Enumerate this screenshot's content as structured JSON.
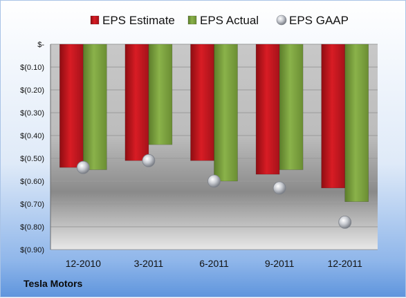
{
  "footer": {
    "company": "Tesla Motors"
  },
  "chart_data": {
    "type": "bar",
    "title": "",
    "xlabel": "",
    "ylabel": "",
    "categories": [
      "12-2010",
      "3-2011",
      "6-2011",
      "9-2011",
      "12-2011"
    ],
    "series": [
      {
        "name": "EPS Estimate",
        "kind": "bar",
        "color": "#c8161e",
        "values": [
          -0.54,
          -0.51,
          -0.51,
          -0.57,
          -0.63
        ]
      },
      {
        "name": "EPS Actual",
        "kind": "bar",
        "color": "#7aa03c",
        "values": [
          -0.55,
          -0.44,
          -0.6,
          -0.55,
          -0.69
        ]
      },
      {
        "name": "EPS GAAP",
        "kind": "marker",
        "color": "#b8bcc4",
        "values": [
          -0.54,
          -0.51,
          -0.6,
          -0.63,
          -0.78
        ]
      }
    ],
    "ylim": [
      -0.9,
      0
    ],
    "yticks": [
      0,
      -0.1,
      -0.2,
      -0.3,
      -0.4,
      -0.5,
      -0.6,
      -0.7,
      -0.8,
      -0.9
    ],
    "ytick_labels": [
      "$-",
      "$(0.10)",
      "$(0.20)",
      "$(0.30)",
      "$(0.40)",
      "$(0.50)",
      "$(0.60)",
      "$(0.70)",
      "$(0.80)",
      "$(0.90)"
    ],
    "grid": true,
    "legend_position": "top"
  }
}
